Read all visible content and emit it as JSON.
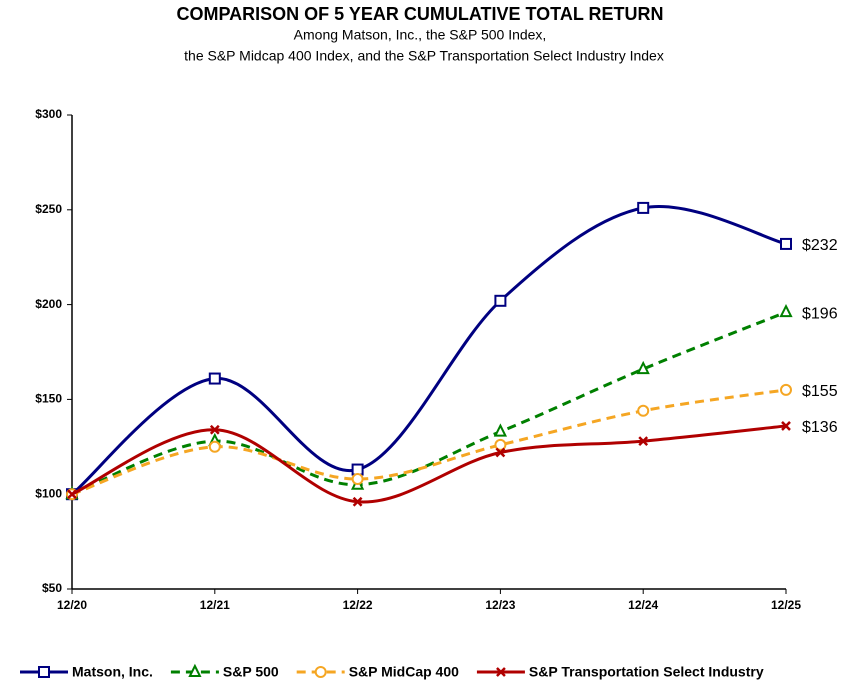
{
  "chart_data": {
    "type": "line",
    "title": "COMPARISON OF 5 YEAR CUMULATIVE TOTAL RETURN",
    "subtitle": [
      "Among Matson, Inc., the S&P 500 Index,",
      "the S&P Midcap 400 Index, and the S&P Transportation Select Industry Index"
    ],
    "categories": [
      "12/20",
      "12/21",
      "12/22",
      "12/23",
      "12/24",
      "12/25"
    ],
    "ylim": [
      50,
      300
    ],
    "yticks": [
      {
        "value": 50,
        "label": "$50"
      },
      {
        "value": 100,
        "label": "$100"
      },
      {
        "value": 150,
        "label": "$150"
      },
      {
        "value": 200,
        "label": "$200"
      },
      {
        "value": 250,
        "label": "$250"
      },
      {
        "value": 300,
        "label": "$300"
      }
    ],
    "grid": false,
    "legend": "bottom",
    "series": [
      {
        "name": "Matson, Inc.",
        "color": "#000080",
        "marker": "square",
        "dash": false,
        "values": [
          100,
          161,
          113,
          202,
          251,
          232
        ],
        "value_labels": [
          null,
          null,
          null,
          null,
          null,
          "$232"
        ]
      },
      {
        "name": "S&P 500",
        "color": "#008000",
        "marker": "triangle",
        "dash": true,
        "values": [
          100,
          128,
          105,
          133,
          166,
          196
        ],
        "value_labels": [
          null,
          null,
          null,
          null,
          null,
          "$196"
        ]
      },
      {
        "name": "S&P MidCap 400",
        "color": "#f5a623",
        "marker": "circle",
        "dash": true,
        "values": [
          100,
          125,
          108,
          126,
          144,
          155
        ],
        "value_labels": [
          null,
          null,
          null,
          null,
          null,
          "$155"
        ]
      },
      {
        "name": "S&P Transportation Select Industry",
        "color": "#b00000",
        "marker": "x",
        "dash": false,
        "values": [
          100,
          134,
          96,
          122,
          128,
          136
        ],
        "value_labels": [
          null,
          null,
          null,
          null,
          null,
          "$136"
        ]
      }
    ]
  }
}
